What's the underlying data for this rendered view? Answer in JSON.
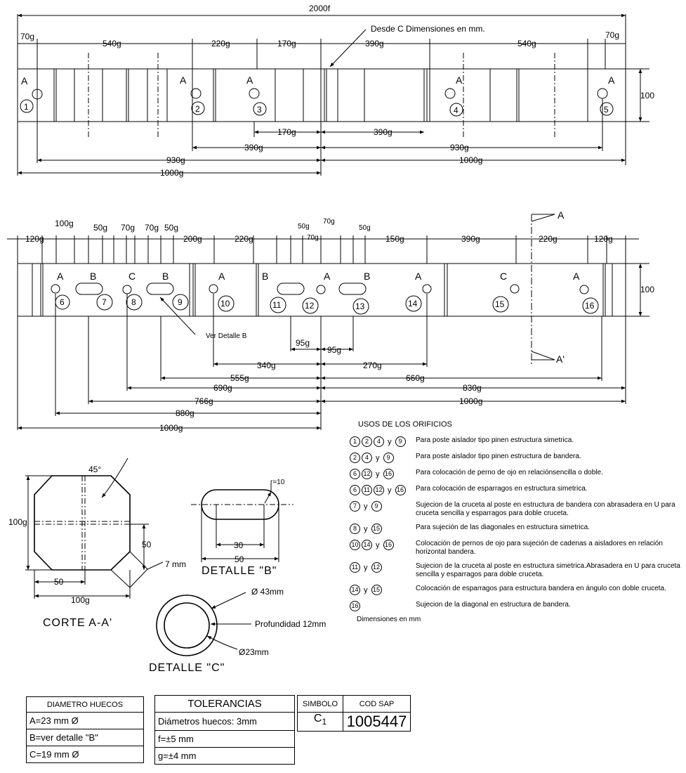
{
  "elevation_top": {
    "overall_dim": "2000f",
    "note": "Desde C Dimensiones en mm.",
    "height_dim": "100",
    "top_dims": [
      "70g",
      "540g",
      "220g",
      "170g",
      "390g",
      "540g",
      "70g"
    ],
    "hole_labels": [
      "A",
      "A",
      "A",
      "A",
      "A"
    ],
    "hole_numbers": [
      "1",
      "2",
      "3",
      "4",
      "5"
    ],
    "lower_dims": [
      "170g",
      "390g",
      "390g",
      "930g",
      "930g",
      "1000g",
      "1000g"
    ]
  },
  "elevation_bottom": {
    "height_dim": "100",
    "top_dims": [
      "120g",
      "100g",
      "50g",
      "70g",
      "70g",
      "50g",
      "200g",
      "220g",
      "50g",
      "70g",
      "70g",
      "50g",
      "150g",
      "390g",
      "220g",
      "120g"
    ],
    "hole_labels": [
      "A",
      "B",
      "C",
      "B",
      "A",
      "B",
      "A",
      "B",
      "A",
      "C",
      "A"
    ],
    "hole_numbers": [
      "6",
      "7",
      "8",
      "9",
      "10",
      "11",
      "12",
      "13",
      "14",
      "15",
      "16"
    ],
    "section_marks": [
      "A",
      "A'"
    ],
    "detail_ref": "Ver Detalle B",
    "lower_dims": [
      "95g",
      "95g",
      "340g",
      "270g",
      "555g",
      "660g",
      "690g",
      "830g",
      "766g",
      "1000g",
      "880g",
      "1000g"
    ]
  },
  "corte": {
    "title": "CORTE A-A'",
    "angle": "45°",
    "height": "100g",
    "half_h": "50",
    "chamfer": "7 mm",
    "half_w": "50",
    "width": "100g"
  },
  "detalle_b": {
    "title": "DETALLE \"B\"",
    "radius": "r=10",
    "inner": "30",
    "outer": "50"
  },
  "detalle_c": {
    "title": "DETALLE \"C\"",
    "d_outer": "Ø 43mm",
    "depth": "Profundidad 12mm",
    "d_inner": "Ø23mm"
  },
  "usos": {
    "title": "USOS DE LOS ORIFICIOS",
    "rows": [
      {
        "sym": [
          "1",
          "2",
          "4",
          "y",
          "9"
        ],
        "text": "Para poste aislador tipo pinen estructura simetrica."
      },
      {
        "sym": [
          "2",
          "4",
          "y",
          "9"
        ],
        "text": "Para poste aislador tipo pinen estructura de bandera."
      },
      {
        "sym": [
          "6",
          "12",
          "y",
          "16"
        ],
        "text": "Para colocación de perno de ojo en relaciónsencilla o doble."
      },
      {
        "sym": [
          "6",
          "11",
          "12",
          "y",
          "16"
        ],
        "text": "Para colocación de esparragos en estructura simetrica."
      },
      {
        "sym": [
          "7",
          "y",
          "9"
        ],
        "text": "Sujecion de la cruceta al poste en estructura de bandera con abrasadera en U para cruceta sencilla y esparragos para doble cruceta."
      },
      {
        "sym": [
          "8",
          "y",
          "15"
        ],
        "text": "Para sujeción de las diagonales en estructura simetrica."
      },
      {
        "sym": [
          "10",
          "14",
          "y",
          "16"
        ],
        "text": "Colocación de pernos de ojo para sujeción de cadenas a aisladores en relación horizontal bandera."
      },
      {
        "sym": [
          "11",
          "y",
          "12"
        ],
        "text": "Sujecion de la cruceta al poste en estructura simetrica.Abrasadera en U para cruceta sencilla y esparragos para doble cruceta."
      },
      {
        "sym": [
          "14",
          "y",
          "15"
        ],
        "text": "Colocación de esparragos para estructura bandera en ángulo con doble cruceta."
      },
      {
        "sym": [
          "16"
        ],
        "text": "Sujecion de la diagonal en estructura de bandera."
      }
    ],
    "footer": "Dimensiones en mm"
  },
  "diametro": {
    "header": "DIAMETRO HUECOS",
    "rows": [
      "A=23 mm Ø",
      "B=ver detalle \"B\"",
      "C=19 mm Ø"
    ]
  },
  "tolerancias": {
    "header": "TOLERANCIAS",
    "rows": [
      "Diámetros huecos: 3mm",
      "f=±5 mm",
      "g=±4 mm"
    ]
  },
  "simbolo": {
    "header": "SIMBOLO",
    "value": "C",
    "sub": "1"
  },
  "sap": {
    "header": "COD SAP",
    "value": "1005447"
  }
}
